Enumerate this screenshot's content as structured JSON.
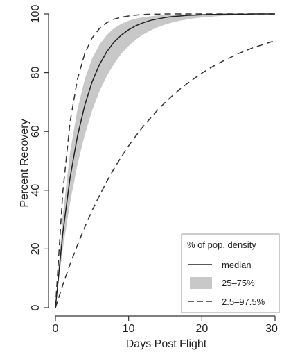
{
  "chart_data": {
    "type": "line",
    "title": "",
    "xlabel": "Days Post Flight",
    "ylabel": "Percent Recovery",
    "xlim": [
      0,
      30
    ],
    "ylim": [
      0,
      100
    ],
    "x_ticks": [
      "0",
      "10",
      "20",
      "30"
    ],
    "y_ticks": [
      "0",
      "20",
      "40",
      "60",
      "80",
      "100"
    ],
    "grid": false,
    "legend": {
      "title": "% of pop. density",
      "placement": "bottom-right",
      "entries": [
        {
          "label": "median",
          "style": "solid"
        },
        {
          "label": "25–75%",
          "style": "band"
        },
        {
          "label": "2.5–97.5%",
          "style": "dashed"
        }
      ]
    },
    "x": [
      0,
      1,
      2,
      3,
      4,
      5,
      6,
      7,
      8,
      9,
      10,
      11,
      12,
      13,
      14,
      15,
      16,
      17,
      18,
      19,
      20,
      21,
      22,
      23,
      24,
      25,
      26,
      27,
      28,
      29,
      30
    ],
    "series": [
      {
        "role": "median",
        "values": [
          0,
          25.3,
          44.2,
          58.3,
          68.9,
          76.8,
          82.7,
          87.1,
          90.4,
          92.8,
          94.6,
          96.0,
          97.0,
          97.8,
          98.3,
          98.8,
          99.1,
          99.3,
          99.5,
          99.6,
          99.7,
          99.8,
          99.8,
          99.9,
          99.9,
          99.9,
          99.9,
          100,
          100,
          100,
          100
        ]
      },
      {
        "role": "iqr_upper",
        "values": [
          0,
          31.3,
          52.8,
          67.5,
          77.7,
          84.7,
          89.5,
          92.8,
          95.1,
          96.6,
          97.7,
          98.4,
          98.9,
          99.2,
          99.5,
          99.6,
          99.7,
          99.8,
          99.9,
          99.9,
          99.9,
          100,
          100,
          100,
          100,
          100,
          100,
          100,
          100,
          100,
          100
        ]
      },
      {
        "role": "iqr_lower",
        "values": [
          0,
          19.9,
          35.8,
          48.6,
          58.8,
          67.0,
          73.6,
          78.8,
          83.0,
          86.4,
          89.1,
          91.3,
          93.0,
          94.4,
          95.5,
          96.4,
          97.1,
          97.7,
          98.1,
          98.5,
          98.8,
          99.0,
          99.2,
          99.4,
          99.5,
          99.6,
          99.7,
          99.7,
          99.8,
          99.8,
          99.9
        ]
      },
      {
        "role": "outer_upper",
        "values": [
          0,
          39.3,
          63.2,
          77.7,
          86.5,
          91.8,
          95.0,
          97.0,
          98.2,
          98.9,
          99.3,
          99.6,
          99.8,
          99.9,
          99.9,
          100,
          100,
          100,
          100,
          100,
          100,
          100,
          100,
          100,
          100,
          100,
          100,
          100,
          100,
          100,
          100
        ]
      },
      {
        "role": "outer_lower",
        "values": [
          0,
          7.7,
          14.8,
          21.3,
          27.4,
          33.0,
          38.1,
          42.9,
          47.3,
          51.3,
          55.1,
          58.5,
          61.7,
          64.6,
          67.4,
          69.9,
          72.2,
          74.4,
          76.3,
          78.1,
          79.8,
          81.4,
          82.8,
          84.1,
          85.3,
          86.5,
          87.5,
          88.5,
          89.3,
          90.1,
          90.9
        ]
      }
    ],
    "colors": {
      "line": "#222222",
      "band": "#c8c8c8",
      "axis": "#333333"
    }
  }
}
